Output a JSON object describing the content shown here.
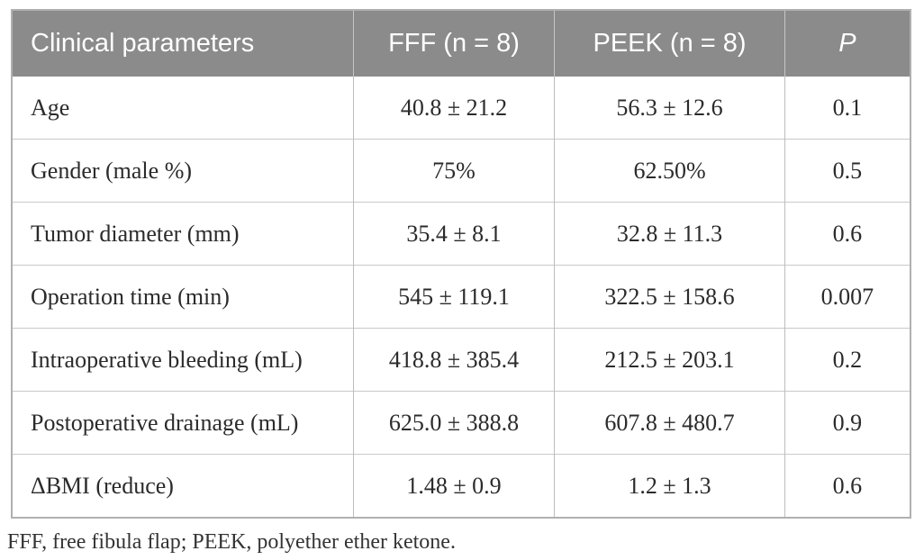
{
  "table": {
    "columns": {
      "param": "Clinical parameters",
      "fff": "FFF (n = 8)",
      "peek": "PEEK (n = 8)",
      "p": "P"
    },
    "rows": [
      {
        "param": "Age",
        "fff": "40.8 ± 21.2",
        "peek": "56.3 ± 12.6",
        "p": "0.1"
      },
      {
        "param": "Gender (male %)",
        "fff": "75%",
        "peek": "62.50%",
        "p": "0.5"
      },
      {
        "param": "Tumor diameter (mm)",
        "fff": "35.4 ± 8.1",
        "peek": "32.8 ± 11.3",
        "p": "0.6"
      },
      {
        "param": "Operation time (min)",
        "fff": "545 ± 119.1",
        "peek": "322.5 ± 158.6",
        "p": "0.007"
      },
      {
        "param": "Intraoperative bleeding (mL)",
        "fff": "418.8 ± 385.4",
        "peek": "212.5 ± 203.1",
        "p": "0.2"
      },
      {
        "param": "Postoperative drainage (mL)",
        "fff": "625.0 ± 388.8",
        "peek": "607.8 ± 480.7",
        "p": "0.9"
      },
      {
        "param": "ΔBMI (reduce)",
        "fff": "1.48 ± 0.9",
        "peek": "1.2 ± 1.3",
        "p": "0.6"
      }
    ],
    "footnote": "FFF, free fibula flap; PEEK, polyether ether ketone."
  },
  "colors": {
    "header_bg": "#8b8b8b",
    "header_text": "#ffffff",
    "body_text": "#2b2b2b",
    "row_border": "#c9c9c9",
    "column_border": "#bdbdbd",
    "outer_border": "#b0b0b0"
  }
}
